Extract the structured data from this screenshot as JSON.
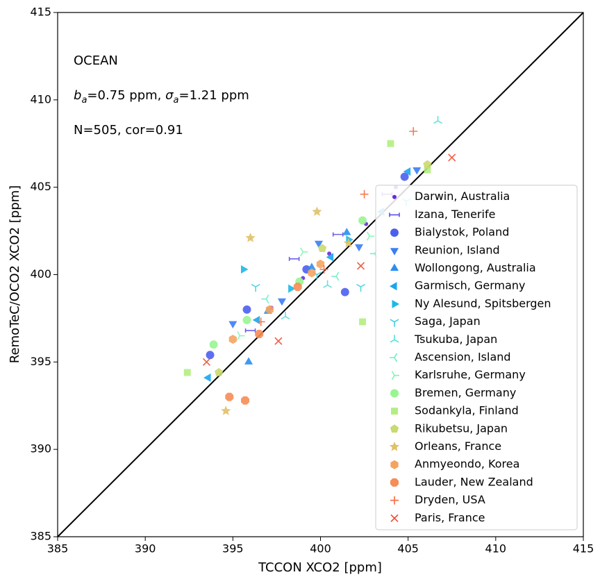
{
  "chart_data": {
    "type": "scatter",
    "x_label": "TCCON XCO2 [ppm]",
    "y_label": "RemoTeC/OCO2 XCO2 [ppm]",
    "annotations": {
      "region": "OCEAN",
      "stats_line": [
        {
          "symbol": "b",
          "sub": "a",
          "text": "=0.75 ppm, "
        },
        {
          "symbol": "σ",
          "sub": "a",
          "text": "=1.21 ppm"
        }
      ],
      "count_line": "N=505, cor=0.91"
    },
    "xlim": [
      385,
      415
    ],
    "ylim": [
      385,
      415
    ],
    "xticks": [
      385,
      390,
      395,
      400,
      405,
      410,
      415
    ],
    "yticks": [
      385,
      390,
      395,
      400,
      405,
      410,
      415
    ],
    "legend": "lower right",
    "series": [
      {
        "name": "Darwin, Australia",
        "color": "#6a2bd9",
        "marker": "dot",
        "x": [
          397.2,
          399.0,
          400.5,
          402.6,
          404.3
        ],
        "values": [
          398.1,
          399.8,
          401.2,
          402.9,
          405.0
        ]
      },
      {
        "name": "Izana, Tenerife",
        "color": "#5b4fe8",
        "marker": "hline",
        "x": [
          396.0,
          398.5,
          401.0,
          403.8
        ],
        "values": [
          396.8,
          400.9,
          402.3,
          404.6
        ]
      },
      {
        "name": "Bialystok, Poland",
        "color": "#4b5fef",
        "marker": "circle",
        "x": [
          393.7,
          395.8,
          399.2,
          401.4,
          404.8
        ],
        "values": [
          395.4,
          398.0,
          400.3,
          399.0,
          405.6
        ]
      },
      {
        "name": "Reunion, Island",
        "color": "#3a7df5",
        "marker": "tri-down",
        "x": [
          395.0,
          397.8,
          399.9,
          402.2,
          405.5
        ],
        "values": [
          397.2,
          398.5,
          401.8,
          401.6,
          406.0
        ]
      },
      {
        "name": "Wollongong, Australia",
        "color": "#2a8ef0",
        "marker": "tri-up",
        "x": [
          395.9,
          397.0,
          399.5,
          401.5
        ],
        "values": [
          395.0,
          397.9,
          400.4,
          402.4
        ]
      },
      {
        "name": "Garmisch, Germany",
        "color": "#1aa5ee",
        "marker": "tri-left",
        "x": [
          393.6,
          396.4,
          400.6,
          403.5,
          405.0
        ],
        "values": [
          394.1,
          397.4,
          401.0,
          403.6,
          405.9
        ]
      },
      {
        "name": "Ny Alesund, Spitsbergen",
        "color": "#1cb8e8",
        "marker": "tri-right",
        "x": [
          395.6,
          398.3,
          401.6
        ],
        "values": [
          400.3,
          399.2,
          402.0
        ]
      },
      {
        "name": "Saga, Japan",
        "color": "#3fd0e0",
        "marker": "y-down",
        "x": [
          396.3,
          399.8,
          402.3,
          404.9
        ],
        "values": [
          399.3,
          400.0,
          399.3,
          404.2
        ]
      },
      {
        "name": "Tsukuba, Japan",
        "color": "#55e0d5",
        "marker": "y-up",
        "x": [
          398.0,
          400.4,
          406.7
        ],
        "values": [
          397.6,
          399.4,
          408.8
        ]
      },
      {
        "name": "Ascension, Island",
        "color": "#6deec6",
        "marker": "y-left",
        "x": [
          396.9,
          400.9,
          403.1
        ],
        "values": [
          398.6,
          399.9,
          401.2
        ]
      },
      {
        "name": "Karlsruhe, Germany",
        "color": "#80f5b0",
        "marker": "y-right",
        "x": [
          395.4,
          399.0,
          402.8
        ],
        "values": [
          396.5,
          401.3,
          402.2
        ]
      },
      {
        "name": "Bremen, Germany",
        "color": "#98f590",
        "marker": "circle",
        "x": [
          393.9,
          395.8,
          398.8,
          402.4
        ],
        "values": [
          396.0,
          397.4,
          399.6,
          403.1
        ]
      },
      {
        "name": "Sodankyla, Finland",
        "color": "#b2ee80",
        "marker": "square",
        "x": [
          392.4,
          402.4,
          404.0,
          406.1
        ],
        "values": [
          394.4,
          397.3,
          407.5,
          406.0
        ]
      },
      {
        "name": "Rikubetsu, Japan",
        "color": "#cad970",
        "marker": "pentagon",
        "x": [
          394.2,
          400.1,
          406.1
        ],
        "values": [
          394.4,
          401.5,
          406.3
        ]
      },
      {
        "name": "Orleans, France",
        "color": "#e0c068",
        "marker": "star",
        "x": [
          394.6,
          396.0,
          399.8,
          401.6
        ],
        "values": [
          392.2,
          402.1,
          403.6,
          401.8
        ]
      },
      {
        "name": "Anmyeondo, Korea",
        "color": "#f5a460",
        "marker": "hexagon",
        "x": [
          395.0,
          397.1,
          399.5,
          400.0
        ],
        "values": [
          396.3,
          398.0,
          400.1,
          400.6
        ]
      },
      {
        "name": "Lauder, New Zealand",
        "color": "#f78c55",
        "marker": "octagon",
        "x": [
          394.8,
          395.7,
          396.5,
          398.7
        ],
        "values": [
          393.0,
          392.8,
          396.6,
          399.3
        ]
      },
      {
        "name": "Dryden, USA",
        "color": "#f66a40",
        "marker": "plus",
        "x": [
          396.6,
          400.2,
          402.5,
          405.3
        ],
        "values": [
          397.3,
          400.3,
          404.6,
          408.2
        ]
      },
      {
        "name": "Paris, France",
        "color": "#ee4a30",
        "marker": "x",
        "x": [
          393.5,
          397.6,
          402.3,
          407.5
        ],
        "values": [
          395.0,
          396.2,
          400.5,
          406.7
        ]
      }
    ]
  }
}
